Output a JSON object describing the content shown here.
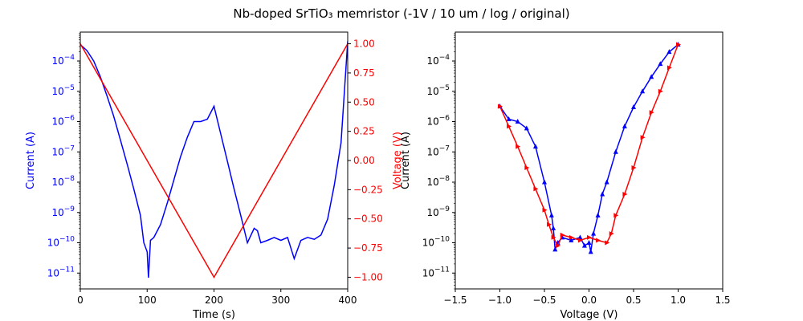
{
  "figure": {
    "title": "Nb-doped SrTiO₃ memristor (-1V / 10 um / log / original)"
  },
  "chart_data": [
    {
      "type": "line",
      "title": "",
      "xlabel": "Time (s)",
      "ylabel": "Current (A)",
      "y2label": "Voltage (V)",
      "xlim": [
        0,
        400
      ],
      "ylim": [
        3e-12,
        0.0009
      ],
      "y2lim": [
        -1.1,
        1.1
      ],
      "yscale": "log",
      "grid": false,
      "x_ticks": [
        "0",
        "100",
        "200",
        "300",
        "400"
      ],
      "y_ticks": [
        {
          "base": "10",
          "exp": "−4"
        },
        {
          "base": "10",
          "exp": "−5"
        },
        {
          "base": "10",
          "exp": "−6"
        },
        {
          "base": "10",
          "exp": "−7"
        },
        {
          "base": "10",
          "exp": "−8"
        },
        {
          "base": "10",
          "exp": "−9"
        },
        {
          "base": "10",
          "exp": "−10"
        },
        {
          "base": "10",
          "exp": "−11"
        }
      ],
      "y2_ticks": [
        "1.00",
        "0.75",
        "0.50",
        "0.25",
        "0.00",
        "−0.25",
        "−0.50",
        "−0.75",
        "−1.00"
      ],
      "colors": {
        "current": "#0000ff",
        "voltage": "#ff0000"
      },
      "series": [
        {
          "axis": "left",
          "color": "#0000ff",
          "x": [
            0,
            10,
            20,
            30,
            40,
            50,
            60,
            70,
            80,
            90,
            95,
            100,
            102,
            105,
            110,
            120,
            130,
            140,
            150,
            160,
            170,
            180,
            190,
            200,
            210,
            220,
            230,
            240,
            250,
            260,
            265,
            270,
            280,
            290,
            300,
            310,
            320,
            330,
            340,
            350,
            360,
            370,
            380,
            390,
            400
          ],
          "y": [
            0.00035,
            0.00022,
            0.0001,
            3e-05,
            7e-06,
            1.5e-06,
            2.5e-07,
            4e-08,
            6e-09,
            8e-10,
            1e-10,
            5e-11,
            7e-12,
            1.2e-10,
            1.5e-10,
            4e-10,
            2e-09,
            1.2e-08,
            7e-08,
            3e-07,
            1e-06,
            1e-06,
            1.2e-06,
            3.2e-06,
            4e-07,
            5e-08,
            6e-09,
            8e-10,
            1e-10,
            3e-10,
            2.5e-10,
            1e-10,
            1.2e-10,
            1.5e-10,
            1.2e-10,
            1.5e-10,
            3e-11,
            1.2e-10,
            1.5e-10,
            1.3e-10,
            1.8e-10,
            6e-10,
            8e-09,
            2e-07,
            0.00045
          ]
        },
        {
          "axis": "right",
          "color": "#ff0000",
          "x": [
            0,
            200,
            400
          ],
          "y": [
            1.0,
            -1.0,
            1.0
          ]
        }
      ]
    },
    {
      "type": "line",
      "title": "",
      "xlabel": "Voltage (V)",
      "ylabel": "Current (A)",
      "xlim": [
        -1.5,
        1.5
      ],
      "ylim": [
        3e-12,
        0.0009
      ],
      "yscale": "log",
      "grid": false,
      "x_ticks": [
        "−1.5",
        "−1.0",
        "−0.5",
        "0.0",
        "0.5",
        "1.0",
        "1.5"
      ],
      "y_ticks": [
        {
          "base": "10",
          "exp": "−4"
        },
        {
          "base": "10",
          "exp": "−5"
        },
        {
          "base": "10",
          "exp": "−6"
        },
        {
          "base": "10",
          "exp": "−7"
        },
        {
          "base": "10",
          "exp": "−8"
        },
        {
          "base": "10",
          "exp": "−9"
        },
        {
          "base": "10",
          "exp": "−10"
        },
        {
          "base": "10",
          "exp": "−11"
        }
      ],
      "colors": {
        "forward": "#0000ff",
        "reverse": "#ff0000"
      },
      "series": [
        {
          "color": "#0000ff",
          "marker": "triangle-up",
          "x": [
            1.0,
            0.9,
            0.8,
            0.7,
            0.6,
            0.5,
            0.4,
            0.3,
            0.2,
            0.15,
            0.1,
            0.05,
            0.02,
            0.0,
            -0.05,
            -0.1,
            -0.2,
            -0.3,
            -0.35,
            -0.38,
            -0.4,
            -0.42,
            -0.5,
            -0.6,
            -0.7,
            -0.8,
            -0.9,
            -1.0
          ],
          "y": [
            0.00035,
            0.0002,
            8e-05,
            3e-05,
            1e-05,
            3e-06,
            7e-07,
            1e-07,
            1e-08,
            4e-09,
            8e-10,
            2e-10,
            5e-11,
            1e-10,
            8e-11,
            1.5e-10,
            1.2e-10,
            1.5e-10,
            1e-10,
            6e-11,
            3e-10,
            8e-10,
            1e-08,
            1.5e-07,
            6e-07,
            1e-06,
            1.2e-06,
            3.2e-06
          ]
        },
        {
          "color": "#ff0000",
          "marker": "triangle-right",
          "x": [
            -1.0,
            -0.9,
            -0.8,
            -0.7,
            -0.6,
            -0.5,
            -0.45,
            -0.4,
            -0.35,
            -0.3,
            -0.2,
            -0.1,
            0.0,
            0.1,
            0.2,
            0.25,
            0.3,
            0.4,
            0.5,
            0.6,
            0.7,
            0.8,
            0.9,
            1.0
          ],
          "y": [
            3.2e-06,
            7e-07,
            1.5e-07,
            3e-08,
            6e-09,
            1.2e-09,
            4e-10,
            1.5e-10,
            8e-11,
            1.8e-10,
            1.5e-10,
            1.2e-10,
            1.5e-10,
            1.2e-10,
            1e-10,
            2e-10,
            8e-10,
            4e-09,
            3e-08,
            3e-07,
            2e-06,
            1e-05,
            6e-05,
            0.00035
          ]
        }
      ]
    }
  ]
}
